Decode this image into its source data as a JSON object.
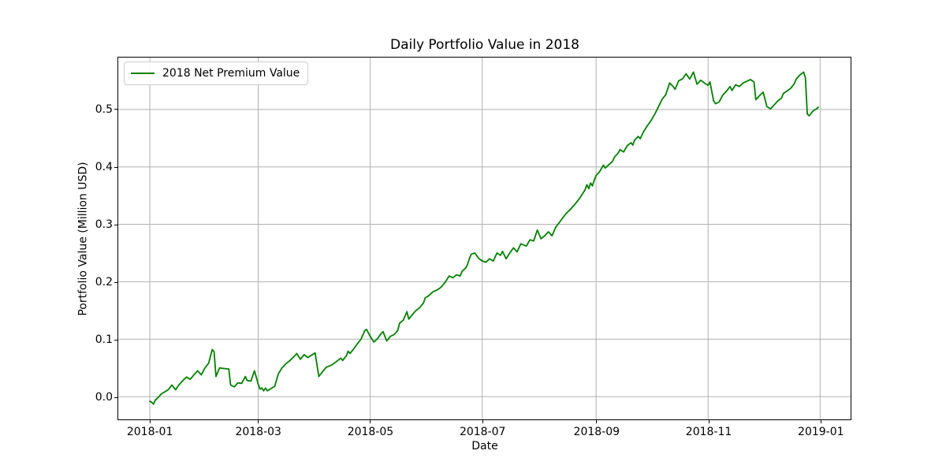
{
  "chart_data": {
    "type": "line",
    "title": "Daily Portfolio Value in 2018",
    "xlabel": "Date",
    "ylabel": "Portfolio Value (Million USD)",
    "x_tick_labels": [
      "2018-01",
      "2018-03",
      "2018-05",
      "2018-07",
      "2018-09",
      "2018-11",
      "2019-01"
    ],
    "x_tick_days": [
      0,
      59,
      120,
      181,
      243,
      304,
      365
    ],
    "y_tick_labels": [
      "0.0",
      "0.1",
      "0.2",
      "0.3",
      "0.4",
      "0.5"
    ],
    "y_ticks": [
      0.0,
      0.1,
      0.2,
      0.3,
      0.4,
      0.5
    ],
    "xlim_days": [
      -17.2,
      381.6
    ],
    "ylim": [
      -0.0397,
      0.5904
    ],
    "grid": true,
    "grid_color": "#b0b0b0",
    "line_color": "#008000",
    "line_width": 1.8,
    "legend": {
      "position": "upper-left",
      "entries": [
        {
          "label": "2018 Net Premium Value",
          "color": "#008000"
        }
      ]
    },
    "series": [
      {
        "name": "2018 Net Premium Value",
        "x_unit": "days_since_2018-01-01",
        "points": [
          [
            0,
            -0.008
          ],
          [
            1,
            -0.01
          ],
          [
            2,
            -0.013
          ],
          [
            3,
            -0.006
          ],
          [
            5,
            0.0
          ],
          [
            6,
            0.004
          ],
          [
            8,
            0.008
          ],
          [
            10,
            0.012
          ],
          [
            12,
            0.02
          ],
          [
            14,
            0.012
          ],
          [
            16,
            0.021
          ],
          [
            18,
            0.028
          ],
          [
            20,
            0.034
          ],
          [
            22,
            0.03
          ],
          [
            24,
            0.038
          ],
          [
            26,
            0.045
          ],
          [
            28,
            0.038
          ],
          [
            30,
            0.05
          ],
          [
            32,
            0.058
          ],
          [
            34,
            0.082
          ],
          [
            35,
            0.078
          ],
          [
            36,
            0.035
          ],
          [
            38,
            0.05
          ],
          [
            40,
            0.049
          ],
          [
            43,
            0.048
          ],
          [
            44,
            0.02
          ],
          [
            46,
            0.017
          ],
          [
            48,
            0.024
          ],
          [
            50,
            0.023
          ],
          [
            52,
            0.035
          ],
          [
            53,
            0.028
          ],
          [
            55,
            0.027
          ],
          [
            57,
            0.045
          ],
          [
            59,
            0.022
          ],
          [
            60,
            0.013
          ],
          [
            61,
            0.015
          ],
          [
            62,
            0.01
          ],
          [
            63,
            0.015
          ],
          [
            64,
            0.01
          ],
          [
            66,
            0.014
          ],
          [
            68,
            0.018
          ],
          [
            70,
            0.04
          ],
          [
            72,
            0.05
          ],
          [
            74,
            0.057
          ],
          [
            76,
            0.062
          ],
          [
            78,
            0.068
          ],
          [
            80,
            0.075
          ],
          [
            82,
            0.065
          ],
          [
            84,
            0.073
          ],
          [
            86,
            0.068
          ],
          [
            88,
            0.072
          ],
          [
            90,
            0.076
          ],
          [
            92,
            0.035
          ],
          [
            94,
            0.043
          ],
          [
            96,
            0.051
          ],
          [
            99,
            0.055
          ],
          [
            102,
            0.062
          ],
          [
            104,
            0.067
          ],
          [
            105,
            0.063
          ],
          [
            107,
            0.071
          ],
          [
            108,
            0.079
          ],
          [
            109,
            0.075
          ],
          [
            111,
            0.083
          ],
          [
            113,
            0.092
          ],
          [
            115,
            0.1
          ],
          [
            117,
            0.115
          ],
          [
            118,
            0.117
          ],
          [
            120,
            0.105
          ],
          [
            122,
            0.095
          ],
          [
            124,
            0.101
          ],
          [
            126,
            0.11
          ],
          [
            127,
            0.113
          ],
          [
            129,
            0.097
          ],
          [
            131,
            0.105
          ],
          [
            133,
            0.108
          ],
          [
            135,
            0.115
          ],
          [
            136,
            0.128
          ],
          [
            138,
            0.133
          ],
          [
            140,
            0.148
          ],
          [
            141,
            0.135
          ],
          [
            143,
            0.143
          ],
          [
            145,
            0.15
          ],
          [
            147,
            0.155
          ],
          [
            149,
            0.163
          ],
          [
            150,
            0.172
          ],
          [
            152,
            0.176
          ],
          [
            154,
            0.182
          ],
          [
            156,
            0.185
          ],
          [
            158,
            0.189
          ],
          [
            159,
            0.192
          ],
          [
            161,
            0.2
          ],
          [
            163,
            0.21
          ],
          [
            165,
            0.207
          ],
          [
            167,
            0.212
          ],
          [
            169,
            0.21
          ],
          [
            170,
            0.218
          ],
          [
            172,
            0.224
          ],
          [
            173,
            0.23
          ],
          [
            174,
            0.24
          ],
          [
            175,
            0.248
          ],
          [
            177,
            0.25
          ],
          [
            179,
            0.241
          ],
          [
            181,
            0.236
          ],
          [
            183,
            0.234
          ],
          [
            185,
            0.24
          ],
          [
            187,
            0.236
          ],
          [
            189,
            0.25
          ],
          [
            191,
            0.246
          ],
          [
            192,
            0.253
          ],
          [
            194,
            0.24
          ],
          [
            196,
            0.25
          ],
          [
            198,
            0.259
          ],
          [
            200,
            0.252
          ],
          [
            202,
            0.266
          ],
          [
            205,
            0.262
          ],
          [
            207,
            0.273
          ],
          [
            209,
            0.271
          ],
          [
            211,
            0.29
          ],
          [
            213,
            0.275
          ],
          [
            215,
            0.28
          ],
          [
            217,
            0.287
          ],
          [
            219,
            0.28
          ],
          [
            221,
            0.295
          ],
          [
            223,
            0.303
          ],
          [
            225,
            0.312
          ],
          [
            227,
            0.32
          ],
          [
            229,
            0.326
          ],
          [
            231,
            0.333
          ],
          [
            233,
            0.341
          ],
          [
            235,
            0.35
          ],
          [
            237,
            0.36
          ],
          [
            238,
            0.369
          ],
          [
            239,
            0.362
          ],
          [
            240,
            0.372
          ],
          [
            241,
            0.367
          ],
          [
            242,
            0.377
          ],
          [
            243,
            0.385
          ],
          [
            245,
            0.392
          ],
          [
            247,
            0.403
          ],
          [
            248,
            0.398
          ],
          [
            250,
            0.404
          ],
          [
            252,
            0.41
          ],
          [
            253,
            0.417
          ],
          [
            255,
            0.424
          ],
          [
            256,
            0.43
          ],
          [
            258,
            0.426
          ],
          [
            260,
            0.437
          ],
          [
            262,
            0.442
          ],
          [
            263,
            0.438
          ],
          [
            264,
            0.447
          ],
          [
            266,
            0.453
          ],
          [
            267,
            0.449
          ],
          [
            269,
            0.462
          ],
          [
            271,
            0.472
          ],
          [
            273,
            0.481
          ],
          [
            275,
            0.492
          ],
          [
            277,
            0.505
          ],
          [
            279,
            0.518
          ],
          [
            281,
            0.526
          ],
          [
            283,
            0.546
          ],
          [
            285,
            0.54
          ],
          [
            286,
            0.535
          ],
          [
            288,
            0.55
          ],
          [
            290,
            0.553
          ],
          [
            292,
            0.562
          ],
          [
            294,
            0.553
          ],
          [
            296,
            0.565
          ],
          [
            298,
            0.544
          ],
          [
            300,
            0.551
          ],
          [
            302,
            0.546
          ],
          [
            304,
            0.542
          ],
          [
            305,
            0.548
          ],
          [
            307,
            0.515
          ],
          [
            308,
            0.51
          ],
          [
            310,
            0.513
          ],
          [
            312,
            0.525
          ],
          [
            314,
            0.532
          ],
          [
            316,
            0.54
          ],
          [
            317,
            0.533
          ],
          [
            319,
            0.543
          ],
          [
            321,
            0.54
          ],
          [
            323,
            0.546
          ],
          [
            325,
            0.549
          ],
          [
            327,
            0.552
          ],
          [
            329,
            0.548
          ],
          [
            330,
            0.517
          ],
          [
            332,
            0.524
          ],
          [
            334,
            0.53
          ],
          [
            336,
            0.505
          ],
          [
            338,
            0.501
          ],
          [
            340,
            0.508
          ],
          [
            342,
            0.515
          ],
          [
            344,
            0.52
          ],
          [
            345,
            0.528
          ],
          [
            347,
            0.532
          ],
          [
            349,
            0.537
          ],
          [
            351,
            0.545
          ],
          [
            352,
            0.553
          ],
          [
            354,
            0.56
          ],
          [
            356,
            0.565
          ],
          [
            357,
            0.555
          ],
          [
            358,
            0.492
          ],
          [
            359,
            0.489
          ],
          [
            361,
            0.497
          ],
          [
            363,
            0.501
          ],
          [
            364,
            0.504
          ]
        ]
      }
    ]
  }
}
